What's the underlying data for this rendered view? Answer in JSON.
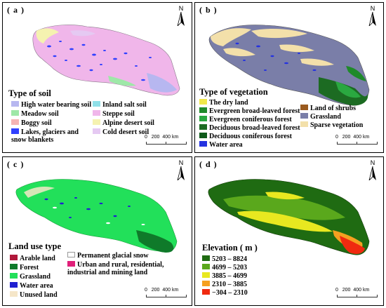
{
  "panels": {
    "a": {
      "label": "( a )",
      "north": "N",
      "legend_title": "Type of soil",
      "legend": [
        {
          "label": "High water bearing soil",
          "color": "#b7b7f0"
        },
        {
          "label": "Inland salt soil",
          "color": "#8fe0e8"
        },
        {
          "label": "Meadow soil",
          "color": "#9ee8a8"
        },
        {
          "label": "Steppe soil",
          "color": "#f0b6ea"
        },
        {
          "label": "Boggy soil",
          "color": "#f5b4b4"
        },
        {
          "label": "Alpine desert soil",
          "color": "#f5f2b0"
        },
        {
          "label": "Lakes, glaciers and snow blankets",
          "color": "#3040ff"
        },
        {
          "label": "Cold desert soil",
          "color": "#e5c9f2"
        }
      ],
      "scale": {
        "t0": "0",
        "t1": "200",
        "t2": "400",
        "unit": "km"
      }
    },
    "b": {
      "label": "( b )",
      "north": "N",
      "legend_title": "Type of vegetation",
      "legend": [
        {
          "label": "The dry land",
          "color": "#f0e84a"
        },
        {
          "label": "Land of shrubs",
          "color": "#9a5a1e"
        },
        {
          "label": "Evergreen broad-leaved forest",
          "color": "#1f8a2a"
        },
        {
          "label": "Grassland",
          "color": "#7a7ea8"
        },
        {
          "label": "Evergreen coniferous forest",
          "color": "#2aa840"
        },
        {
          "label": "Sparse vegetation",
          "color": "#f3e0aa"
        },
        {
          "label": "Deciduous broad-leaved forest",
          "color": "#1c6b22"
        },
        {
          "label": "Deciduous coniferous forest",
          "color": "#0e5a1a"
        },
        {
          "label": "Water area",
          "color": "#2432e0"
        }
      ],
      "scale": {
        "t0": "0",
        "t1": "200",
        "t2": "400",
        "unit": "km"
      }
    },
    "c": {
      "label": "( c )",
      "north": "N",
      "legend_title": "Land use type",
      "legend": [
        {
          "label": "Arable land",
          "color": "#b0183a"
        },
        {
          "label": "Permanent glacial snow",
          "color": "#ffffff"
        },
        {
          "label": "Forest",
          "color": "#0f7a2a"
        },
        {
          "label": "Urban and rural, residential, industrial and mining land",
          "color": "#e0207a"
        },
        {
          "label": "Grassland",
          "color": "#22e05a"
        },
        {
          "label": "Water area",
          "color": "#2020d0"
        },
        {
          "label": "Unused land",
          "color": "#f5e6c8"
        }
      ],
      "scale": {
        "t0": "0",
        "t1": "200",
        "t2": "400",
        "unit": "km"
      }
    },
    "d": {
      "label": "( d )",
      "north": "N",
      "legend_title": "Elevation ( m )",
      "legend": [
        {
          "label": "5203 – 8824",
          "color": "#1f6b12"
        },
        {
          "label": "4699 – 5203",
          "color": "#5aa81c"
        },
        {
          "label": "3885 – 4699",
          "color": "#e8e820"
        },
        {
          "label": "2310 – 3885",
          "color": "#f5a020"
        },
        {
          "label": "−304 – 2310",
          "color": "#f02a10"
        }
      ],
      "scale": {
        "t0": "0",
        "t1": "200",
        "t2": "400",
        "unit": "km"
      }
    }
  }
}
